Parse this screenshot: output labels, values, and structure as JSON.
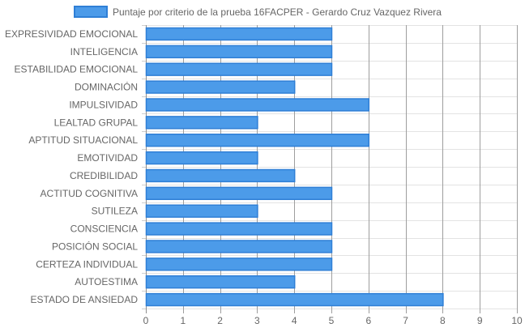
{
  "chart_data": {
    "type": "bar",
    "orientation": "horizontal",
    "categories": [
      "EXPRESIVIDAD EMOCIONAL",
      "INTELIGENCIA",
      "ESTABILIDAD EMOCIONAL",
      "DOMINACIÓN",
      "IMPULSIVIDAD",
      "LEALTAD GRUPAL",
      "APTITUD SITUACIONAL",
      "EMOTIVIDAD",
      "CREDIBILIDAD",
      "ACTITUD COGNITIVA",
      "SUTILEZA",
      "CONSCIENCIA",
      "POSICIÓN SOCIAL",
      "CERTEZA INDIVIDUAL",
      "AUTOESTIMA",
      "ESTADO DE ANSIEDAD"
    ],
    "series": [
      {
        "name": "Puntaje por criterio de la prueba 16FACPER - Gerardo Cruz Vazquez Rivera",
        "values": [
          5,
          5,
          5,
          4,
          6,
          3,
          6,
          3,
          4,
          5,
          3,
          5,
          5,
          5,
          4,
          8
        ],
        "color": "#4c9be9",
        "border_color": "#2f7fd6"
      }
    ],
    "title": "",
    "xlabel": "",
    "ylabel": "",
    "xlim": [
      0,
      10
    ],
    "xticks": [
      "0",
      "1",
      "2",
      "3",
      "4",
      "5",
      "6",
      "7",
      "8",
      "9",
      "10"
    ],
    "grid": true,
    "legend_position": "top"
  }
}
